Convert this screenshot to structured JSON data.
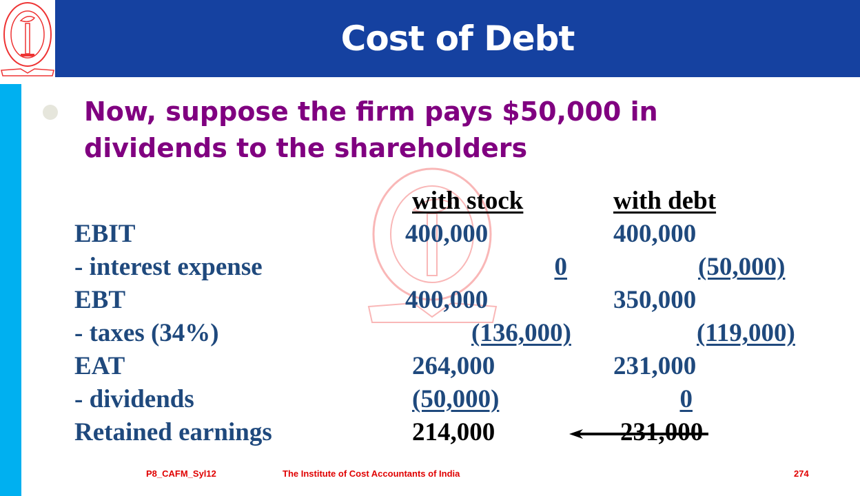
{
  "header": {
    "title": "Cost of Debt",
    "logo_text": "THE INSTITUTE OF COST ACCOUNTANTS OF INDIA"
  },
  "body": {
    "title": "Now, suppose the firm pays $50,000 in dividends to the shareholders"
  },
  "table": {
    "columns": [
      "with stock",
      "with debt"
    ],
    "rows": [
      {
        "label": "EBIT",
        "stock": "400,000",
        "debt": "400,000"
      },
      {
        "label": "- interest expense",
        "stock": "0",
        "debt": "(50,000)"
      },
      {
        "label": "EBT",
        "stock": "400,000",
        "debt": "350,000"
      },
      {
        "label": "- taxes (34%)",
        "stock": "(136,000)",
        "debt": "(119,000)"
      },
      {
        "label": "EAT",
        "stock": "264,000",
        "debt": "231,000"
      },
      {
        "label": "- dividends",
        "stock": "(50,000)",
        "debt": "0"
      },
      {
        "label": "Retained earnings",
        "stock": "214,000",
        "debt": "231,000"
      }
    ]
  },
  "footer": {
    "left": "P8_CAFM_Syl12",
    "center": "The Institute of Cost Accountants of India",
    "page": "274"
  },
  "colors": {
    "header": "#1541a0",
    "sidebar": "#00b0f0",
    "title": "#800080",
    "table": "#1f497d",
    "footer": "#e00000"
  }
}
